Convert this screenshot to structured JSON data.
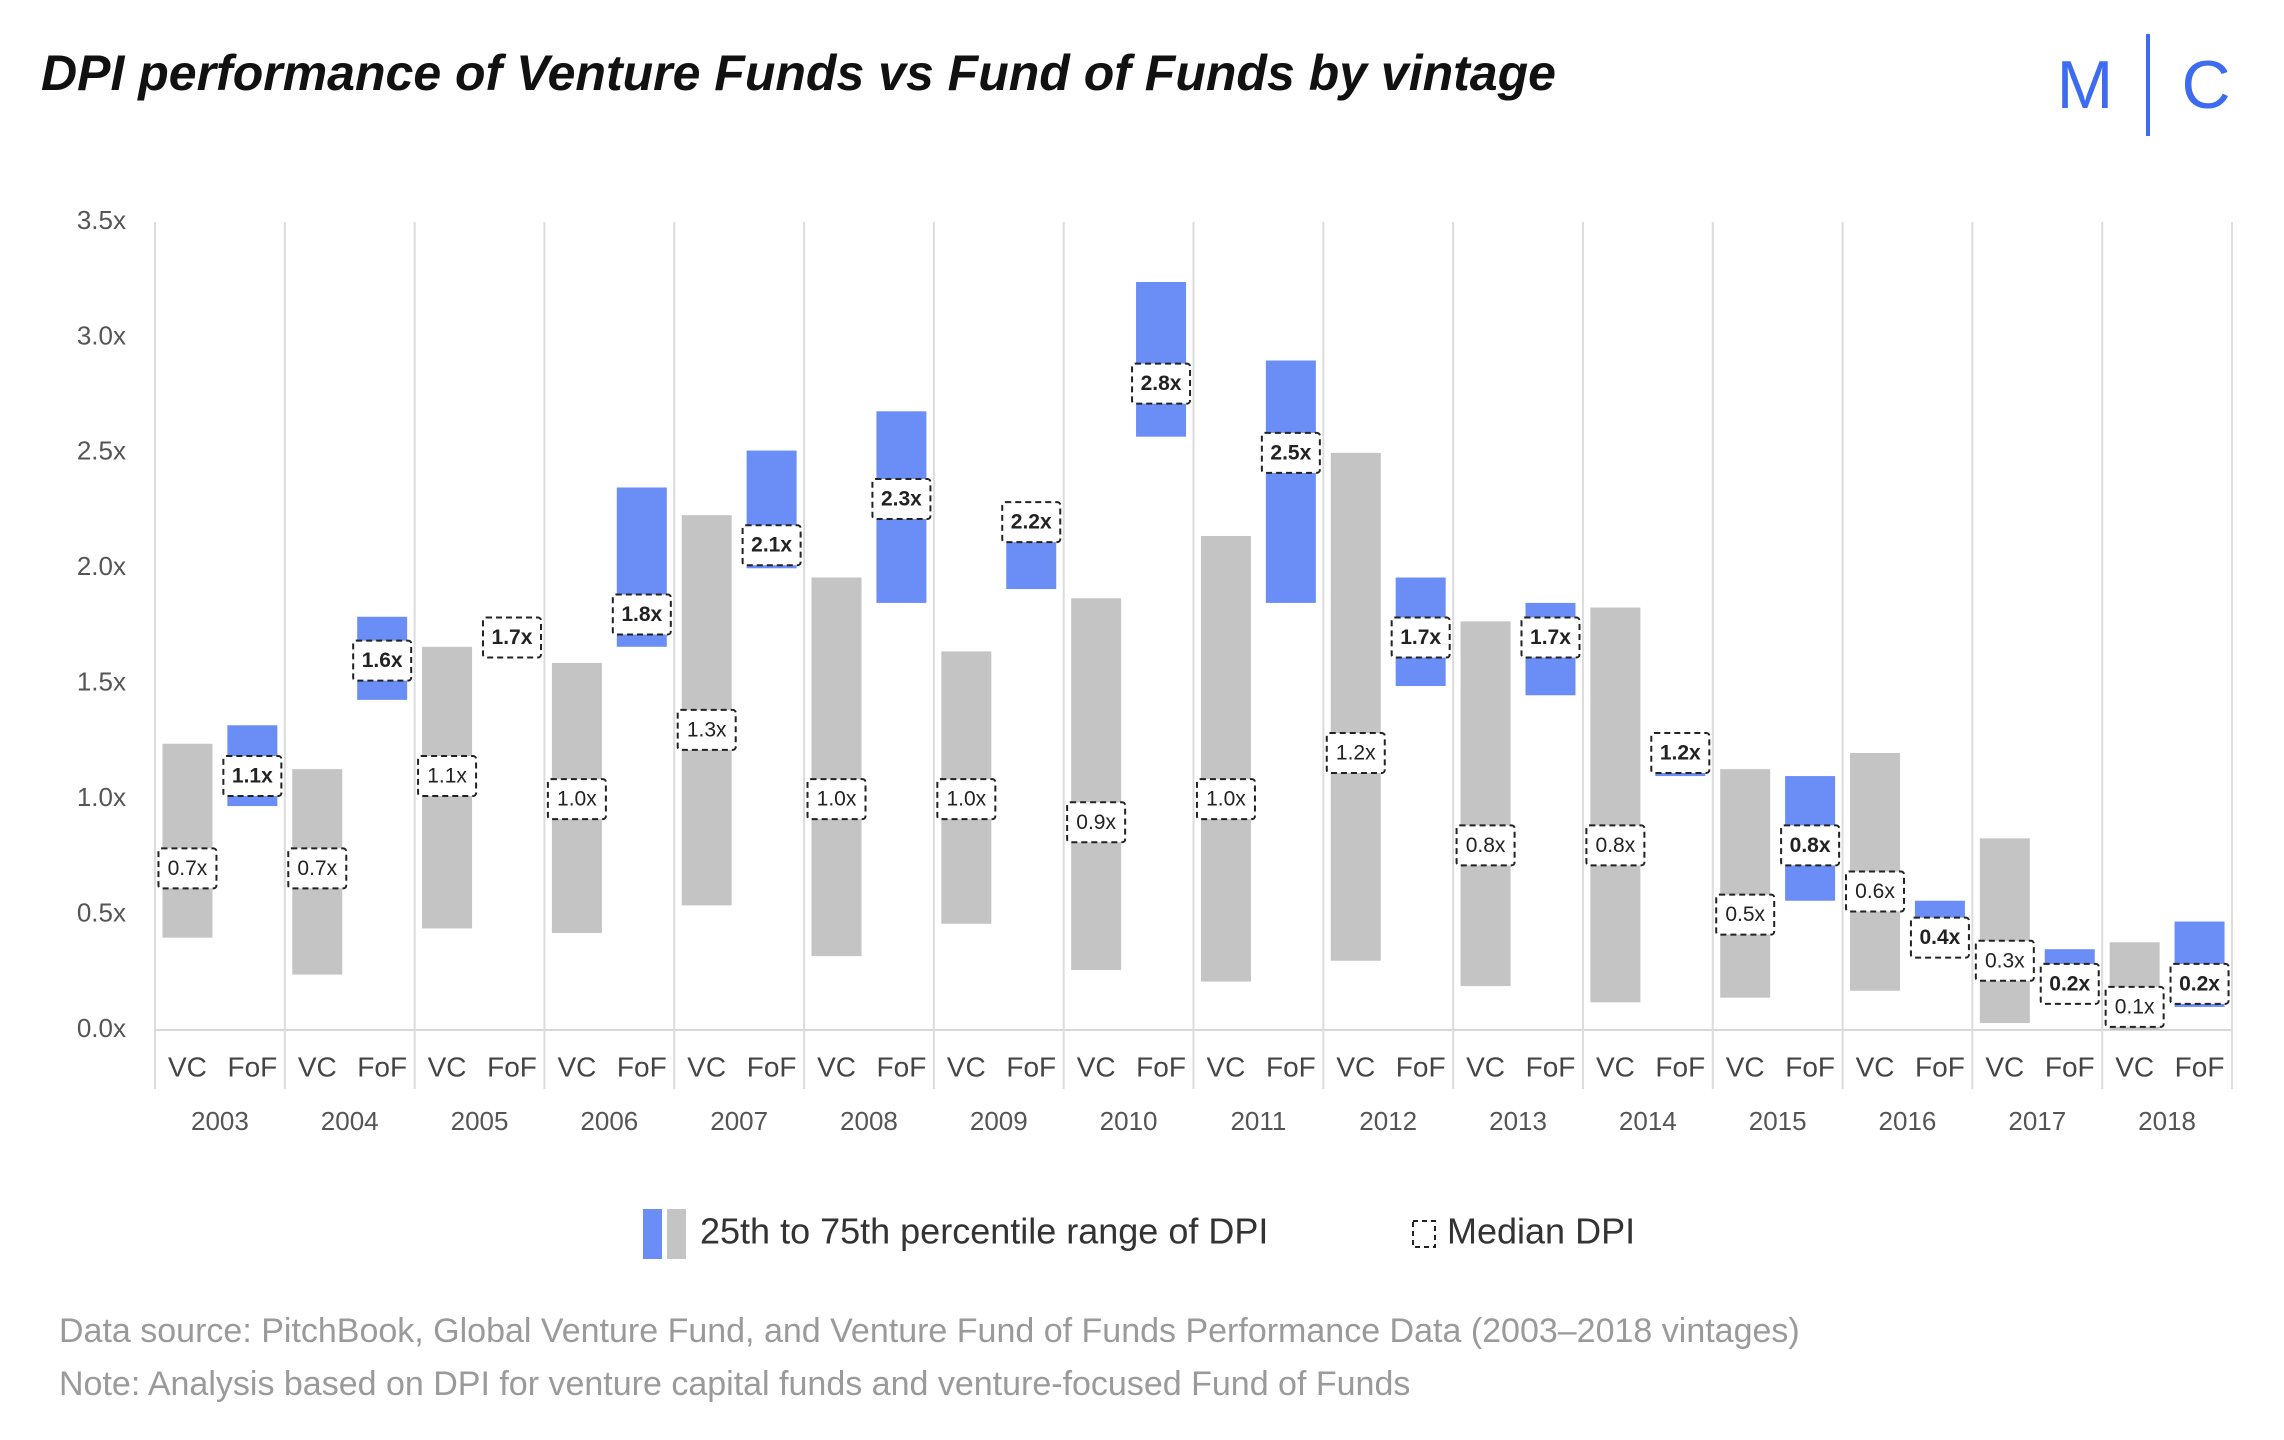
{
  "chart_data": {
    "type": "floating-bar",
    "title": "DPI performance of Venture Funds vs Fund of Funds by vintage",
    "categories": [
      "2003",
      "2004",
      "2005",
      "2006",
      "2007",
      "2008",
      "2009",
      "2010",
      "2011",
      "2012",
      "2013",
      "2014",
      "2015",
      "2016",
      "2017",
      "2018"
    ],
    "series": [
      {
        "name": "VC",
        "color": "#c4c4c4",
        "low": [
          0.4,
          0.24,
          0.44,
          0.42,
          0.54,
          0.32,
          0.46,
          0.26,
          0.21,
          0.3,
          0.19,
          0.12,
          0.14,
          0.17,
          0.03,
          0.0
        ],
        "high": [
          1.24,
          1.13,
          1.66,
          1.59,
          2.23,
          1.96,
          1.64,
          1.87,
          2.14,
          2.5,
          1.77,
          1.83,
          1.13,
          1.2,
          0.83,
          0.38
        ],
        "median": [
          0.7,
          0.7,
          1.1,
          1.0,
          1.3,
          1.0,
          1.0,
          0.9,
          1.0,
          1.2,
          0.8,
          0.8,
          0.5,
          0.6,
          0.3,
          0.1
        ],
        "median_labels": [
          "0.7x",
          "0.7x",
          "1.1x",
          "1.0x",
          "1.3x",
          "1.0x",
          "1.0x",
          "0.9x",
          "1.0x",
          "1.2x",
          "0.8x",
          "0.8x",
          "0.5x",
          "0.6x",
          "0.3x",
          "0.1x"
        ]
      },
      {
        "name": "FoF",
        "color": "#6b8df6",
        "low": [
          0.97,
          1.43,
          1.68,
          1.66,
          2.0,
          1.85,
          1.91,
          2.57,
          1.85,
          1.49,
          1.45,
          1.1,
          0.56,
          0.4,
          0.27,
          0.1
        ],
        "high": [
          1.32,
          1.79,
          1.72,
          2.35,
          2.51,
          2.68,
          2.2,
          3.24,
          2.9,
          1.96,
          1.85,
          1.2,
          1.1,
          0.56,
          0.35,
          0.47
        ],
        "median": [
          1.1,
          1.6,
          1.7,
          1.8,
          2.1,
          2.3,
          2.2,
          2.8,
          2.5,
          1.7,
          1.7,
          1.2,
          0.8,
          0.4,
          0.2,
          0.2
        ],
        "median_labels": [
          "1.1x",
          "1.6x",
          "1.7x",
          "1.8x",
          "2.1x",
          "2.3x",
          "2.2x",
          "2.8x",
          "2.5x",
          "1.7x",
          "1.7x",
          "1.2x",
          "0.8x",
          "0.4x",
          "0.2x",
          "0.2x"
        ]
      }
    ],
    "ylim": [
      0,
      3.5
    ],
    "yticks": [
      {
        "value": 0,
        "label": "0.0x"
      },
      {
        "value": 0.5,
        "label": "0.5x"
      },
      {
        "value": 1,
        "label": "1.0x"
      },
      {
        "value": 1.5,
        "label": "1.5x"
      },
      {
        "value": 2,
        "label": "2.0x"
      },
      {
        "value": 2.5,
        "label": "2.5x"
      },
      {
        "value": 3,
        "label": "3.0x"
      },
      {
        "value": 3.5,
        "label": "3.5x"
      }
    ],
    "grid": true,
    "legend": {
      "range": "25th to 75th percentile range of DPI",
      "median": "Median DPI"
    }
  },
  "logo": [
    "M",
    "C"
  ],
  "notes": [
    "Data source: PitchBook, Global Venture Fund, and Venture Fund of Funds Performance Data (2003–2018 vintages)",
    "Note: Analysis based on DPI for venture capital funds and venture-focused Fund of Funds"
  ]
}
